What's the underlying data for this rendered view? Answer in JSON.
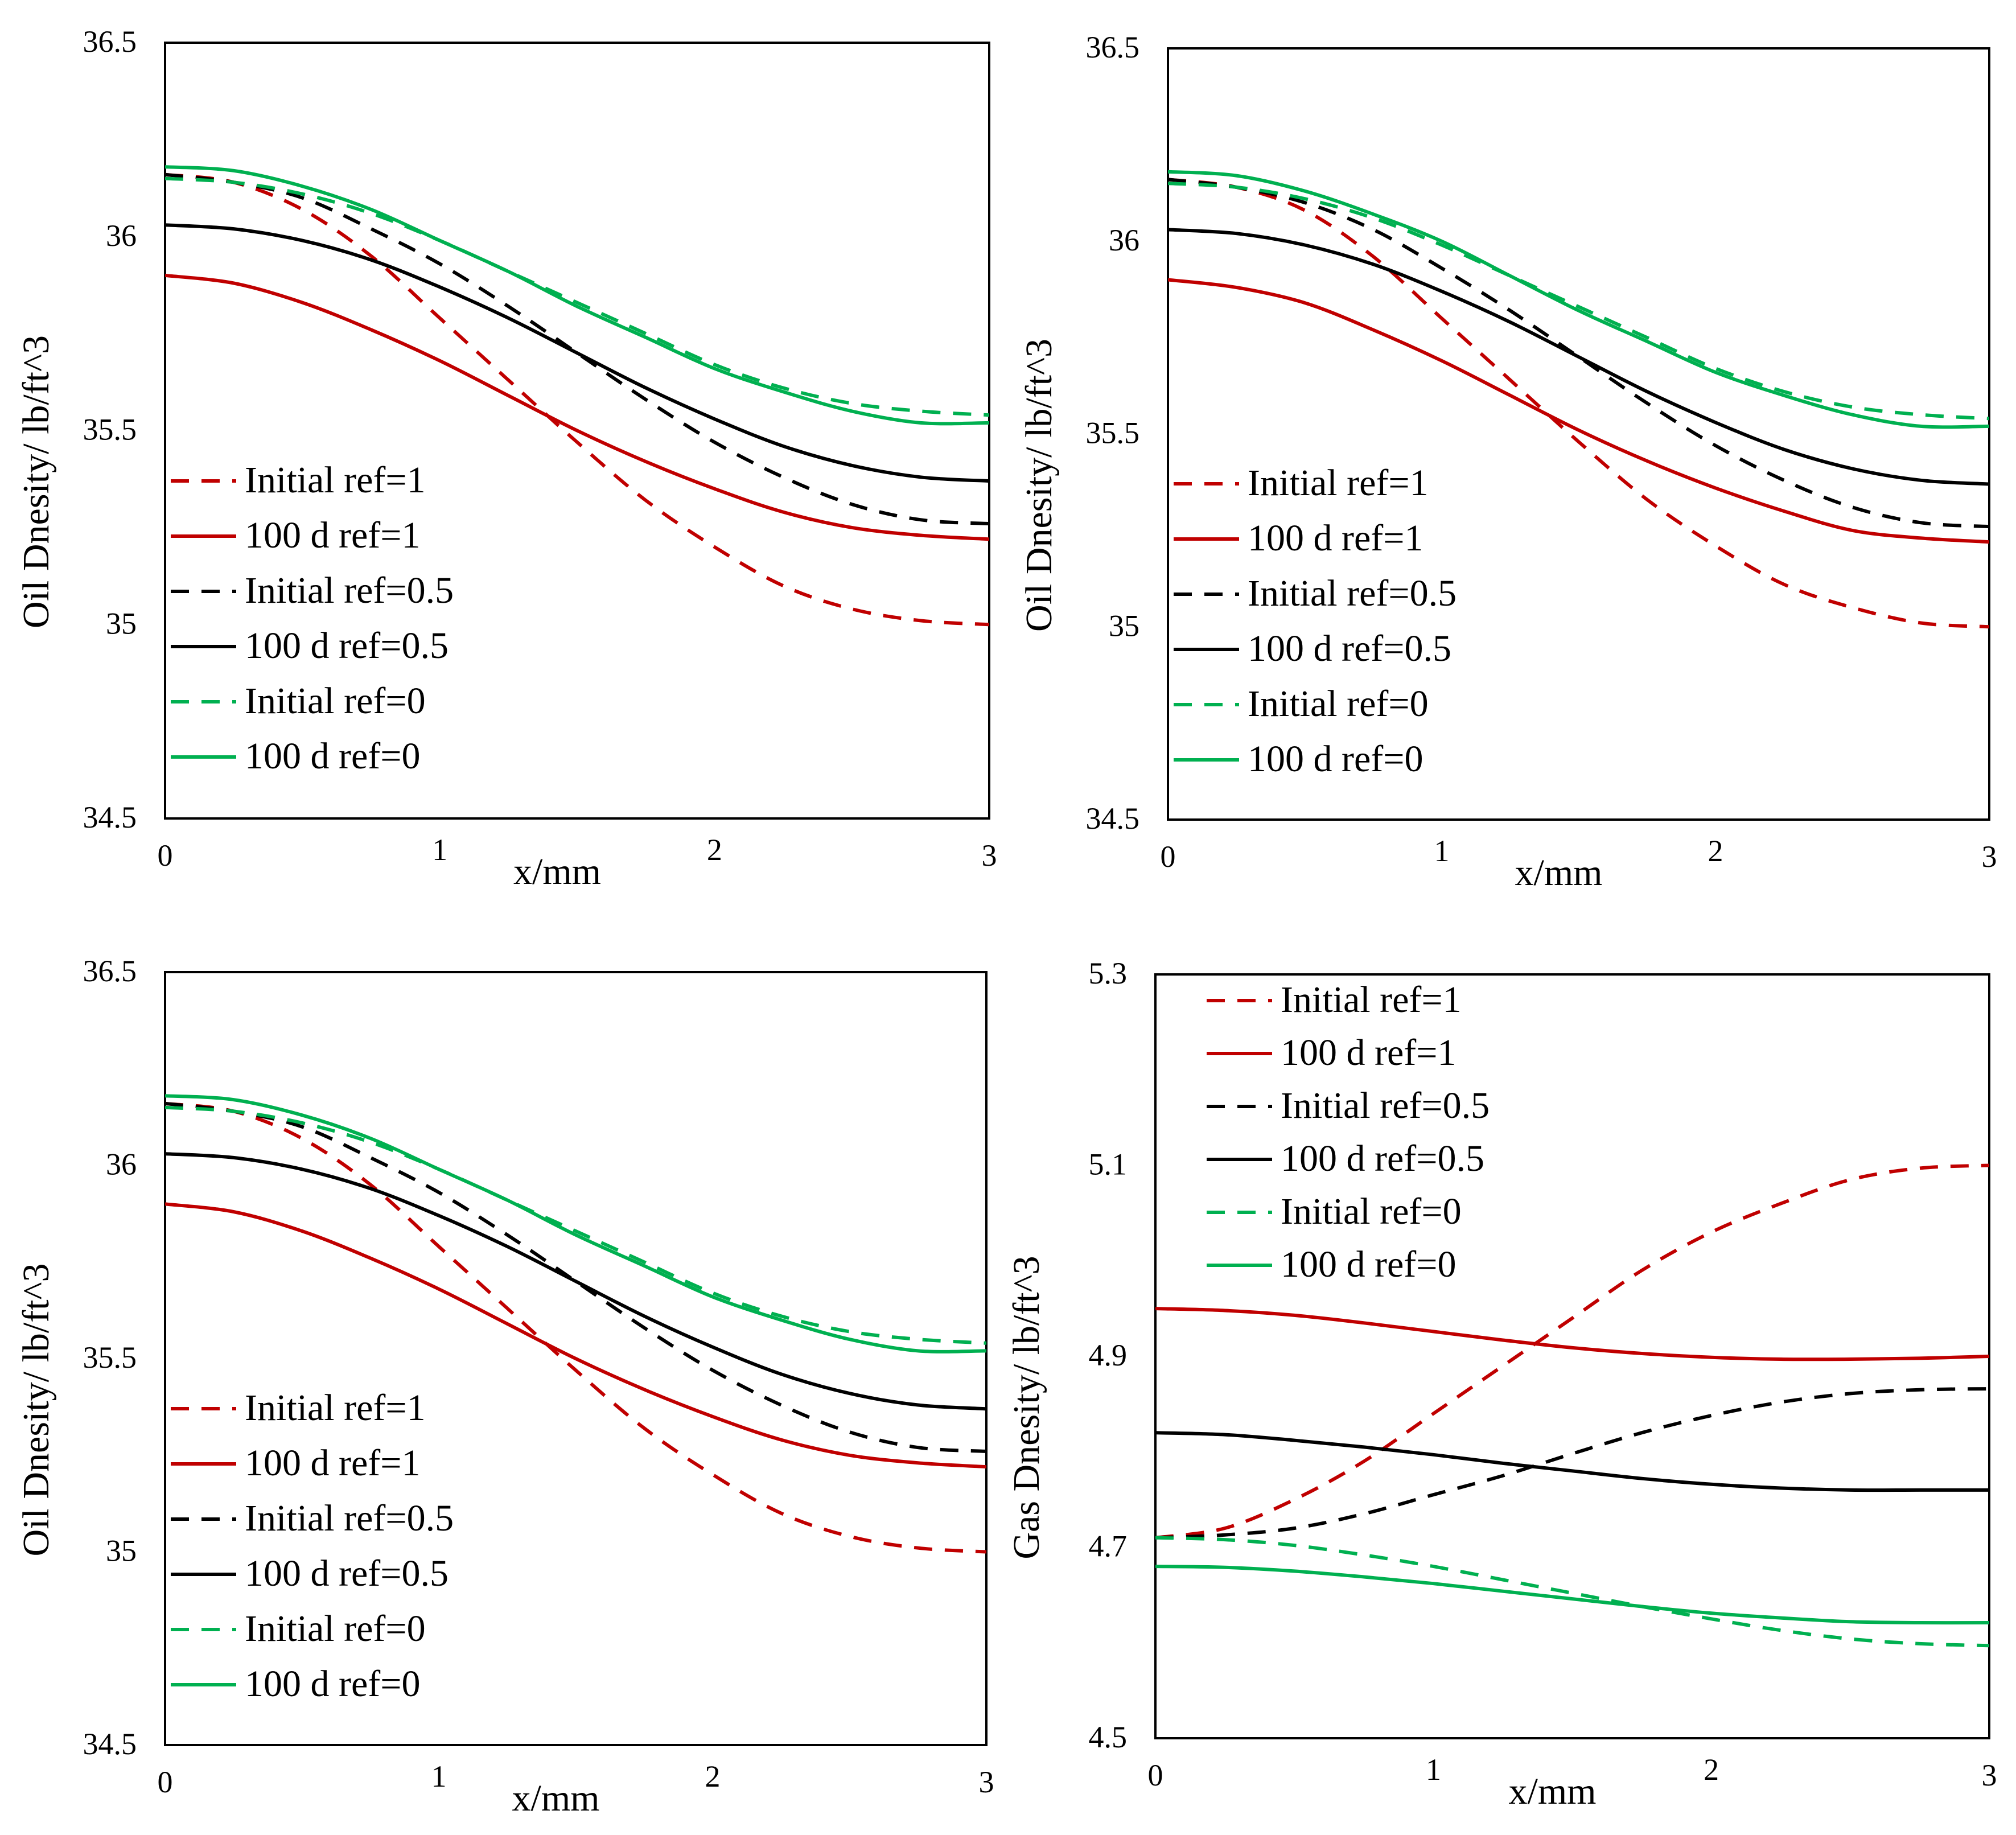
{
  "figure": {
    "description_free": true
  },
  "chart_data": [
    {
      "id": "a",
      "type": "line",
      "title": "",
      "xlabel": "x/mm",
      "ylabel": "Oil Dnesity/ lb/ft^3",
      "xlim": [
        0,
        3
      ],
      "ylim": [
        34.5,
        36.5
      ],
      "xticks": [
        0,
        1,
        2,
        3
      ],
      "xtick_labels": [
        "0",
        "1",
        "2",
        "3"
      ],
      "yticks": [
        34.5,
        35,
        35.5,
        36,
        36.5
      ],
      "ytick_labels": [
        "34.5",
        "35",
        "35.5",
        "36",
        "36.5"
      ],
      "legend_position": "bottom-left",
      "grid": false,
      "x": [
        0,
        0.25,
        0.5,
        0.75,
        1.0,
        1.25,
        1.5,
        1.75,
        2.0,
        2.25,
        2.5,
        2.75,
        3.0
      ],
      "series": [
        {
          "name": "Initial ref=1",
          "color": "#c00000",
          "style": "dashed",
          "values": [
            36.16,
            36.14,
            36.07,
            35.95,
            35.79,
            35.63,
            35.47,
            35.32,
            35.2,
            35.1,
            35.04,
            35.01,
            35.0
          ]
        },
        {
          "name": "100 d ref=1",
          "color": "#c00000",
          "style": "solid",
          "values": [
            35.9,
            35.88,
            35.83,
            35.76,
            35.68,
            35.59,
            35.5,
            35.42,
            35.35,
            35.29,
            35.25,
            35.23,
            35.22
          ]
        },
        {
          "name": "Initial ref=0.5",
          "color": "#000000",
          "style": "dashed",
          "values": [
            36.16,
            36.14,
            36.1,
            36.02,
            35.93,
            35.82,
            35.7,
            35.58,
            35.47,
            35.38,
            35.31,
            35.27,
            35.26
          ]
        },
        {
          "name": "100 d ref=0.5",
          "color": "#000000",
          "style": "solid",
          "values": [
            36.03,
            36.02,
            35.99,
            35.94,
            35.87,
            35.79,
            35.7,
            35.61,
            35.53,
            35.46,
            35.41,
            35.38,
            35.37
          ]
        },
        {
          "name": "Initial ref=0",
          "color": "#00b050",
          "style": "dashed",
          "values": [
            36.15,
            36.14,
            36.11,
            36.06,
            35.99,
            35.91,
            35.83,
            35.75,
            35.67,
            35.61,
            35.57,
            35.55,
            35.54
          ]
        },
        {
          "name": "100 d ref=0",
          "color": "#00b050",
          "style": "solid",
          "values": [
            36.18,
            36.17,
            36.13,
            36.07,
            35.99,
            35.91,
            35.82,
            35.74,
            35.66,
            35.6,
            35.55,
            35.52,
            35.52
          ]
        }
      ]
    },
    {
      "id": "b",
      "type": "line",
      "title": "",
      "xlabel": "x/mm",
      "ylabel": "Oil Dnesity/ lb/ft^3",
      "xlim": [
        0,
        3
      ],
      "ylim": [
        34.5,
        36.5
      ],
      "xticks": [
        0,
        1,
        2,
        3
      ],
      "xtick_labels": [
        "0",
        "1",
        "2",
        "3"
      ],
      "yticks": [
        34.5,
        35,
        35.5,
        36,
        36.5
      ],
      "ytick_labels": [
        "34.5",
        "35",
        "35.5",
        "36",
        "36.5"
      ],
      "legend_position": "bottom-left",
      "grid": false,
      "x": [
        0,
        0.25,
        0.5,
        0.75,
        1.0,
        1.25,
        1.5,
        1.75,
        2.0,
        2.25,
        2.5,
        2.75,
        3.0
      ],
      "series": [
        {
          "name": "Initial ref=1",
          "color": "#c00000",
          "style": "dashed",
          "values": [
            36.16,
            36.14,
            36.08,
            35.96,
            35.8,
            35.64,
            35.48,
            35.33,
            35.21,
            35.11,
            35.05,
            35.01,
            35.0
          ]
        },
        {
          "name": "100 d ref=1",
          "color": "#c00000",
          "style": "solid",
          "values": [
            35.9,
            35.88,
            35.84,
            35.77,
            35.69,
            35.6,
            35.51,
            35.43,
            35.36,
            35.3,
            35.25,
            35.23,
            35.22
          ]
        },
        {
          "name": "Initial ref=0.5",
          "color": "#000000",
          "style": "dashed",
          "values": [
            36.16,
            36.14,
            36.1,
            36.03,
            35.93,
            35.82,
            35.7,
            35.58,
            35.47,
            35.38,
            35.31,
            35.27,
            35.26
          ]
        },
        {
          "name": "100 d ref=0.5",
          "color": "#000000",
          "style": "solid",
          "values": [
            36.03,
            36.02,
            35.99,
            35.94,
            35.87,
            35.79,
            35.7,
            35.61,
            35.53,
            35.46,
            35.41,
            35.38,
            35.37
          ]
        },
        {
          "name": "Initial ref=0",
          "color": "#00b050",
          "style": "dashed",
          "values": [
            36.15,
            36.14,
            36.11,
            36.06,
            35.99,
            35.91,
            35.83,
            35.75,
            35.67,
            35.61,
            35.57,
            35.55,
            35.54
          ]
        },
        {
          "name": "100 d ref=0",
          "color": "#00b050",
          "style": "solid",
          "values": [
            36.18,
            36.17,
            36.13,
            36.07,
            36.0,
            35.91,
            35.82,
            35.74,
            35.66,
            35.6,
            35.55,
            35.52,
            35.52
          ]
        }
      ]
    },
    {
      "id": "c",
      "type": "line",
      "title": "",
      "xlabel": "x/mm",
      "ylabel": "Oil Dnesity/ lb/ft^3",
      "xlim": [
        0,
        3
      ],
      "ylim": [
        34.5,
        36.5
      ],
      "xticks": [
        0,
        1,
        2,
        3
      ],
      "xtick_labels": [
        "0",
        "1",
        "2",
        "3"
      ],
      "yticks": [
        34.5,
        35,
        35.5,
        36,
        36.5
      ],
      "ytick_labels": [
        "34.5",
        "35",
        "35.5",
        "36",
        "36.5"
      ],
      "legend_position": "bottom-left",
      "grid": false,
      "x": [
        0,
        0.25,
        0.5,
        0.75,
        1.0,
        1.25,
        1.5,
        1.75,
        2.0,
        2.25,
        2.5,
        2.75,
        3.0
      ],
      "series": [
        {
          "name": "Initial ref=1",
          "color": "#c00000",
          "style": "dashed",
          "values": [
            36.16,
            36.14,
            36.07,
            35.95,
            35.79,
            35.63,
            35.47,
            35.32,
            35.2,
            35.1,
            35.04,
            35.01,
            35.0
          ]
        },
        {
          "name": "100 d ref=1",
          "color": "#c00000",
          "style": "solid",
          "values": [
            35.9,
            35.88,
            35.83,
            35.76,
            35.68,
            35.59,
            35.5,
            35.42,
            35.35,
            35.29,
            35.25,
            35.23,
            35.22
          ]
        },
        {
          "name": "Initial ref=0.5",
          "color": "#000000",
          "style": "dashed",
          "values": [
            36.16,
            36.14,
            36.1,
            36.02,
            35.93,
            35.82,
            35.7,
            35.58,
            35.47,
            35.38,
            35.31,
            35.27,
            35.26
          ]
        },
        {
          "name": "100 d ref=0.5",
          "color": "#000000",
          "style": "solid",
          "values": [
            36.03,
            36.02,
            35.99,
            35.94,
            35.87,
            35.79,
            35.7,
            35.61,
            35.53,
            35.46,
            35.41,
            35.38,
            35.37
          ]
        },
        {
          "name": "Initial ref=0",
          "color": "#00b050",
          "style": "dashed",
          "values": [
            36.15,
            36.14,
            36.11,
            36.06,
            35.99,
            35.91,
            35.83,
            35.75,
            35.67,
            35.61,
            35.57,
            35.55,
            35.54
          ]
        },
        {
          "name": "100 d ref=0",
          "color": "#00b050",
          "style": "solid",
          "values": [
            36.18,
            36.17,
            36.13,
            36.07,
            35.99,
            35.91,
            35.82,
            35.74,
            35.66,
            35.6,
            35.55,
            35.52,
            35.52
          ]
        }
      ]
    },
    {
      "id": "d",
      "type": "line",
      "title": "",
      "xlabel": "x/mm",
      "ylabel": "Gas Dnesity/ lb/ft^3",
      "xlim": [
        0,
        3
      ],
      "ylim": [
        4.5,
        5.3
      ],
      "xticks": [
        0,
        1,
        2,
        3
      ],
      "xtick_labels": [
        "0",
        "1",
        "2",
        "3"
      ],
      "yticks": [
        4.5,
        4.7,
        4.9,
        5.1,
        5.3
      ],
      "ytick_labels": [
        "4.5",
        "4.7",
        "4.9",
        "5.1",
        "5.3"
      ],
      "legend_position": "top-left",
      "grid": false,
      "x": [
        0,
        0.25,
        0.5,
        0.75,
        1.0,
        1.25,
        1.5,
        1.75,
        2.0,
        2.25,
        2.5,
        2.75,
        3.0
      ],
      "series": [
        {
          "name": "Initial ref=1",
          "color": "#c00000",
          "style": "dashed",
          "values": [
            4.71,
            4.72,
            4.75,
            4.79,
            4.84,
            4.89,
            4.94,
            4.99,
            5.03,
            5.06,
            5.085,
            5.097,
            5.1
          ]
        },
        {
          "name": "100 d ref=1",
          "color": "#c00000",
          "style": "solid",
          "values": [
            4.95,
            4.948,
            4.943,
            4.935,
            4.926,
            4.917,
            4.909,
            4.903,
            4.899,
            4.897,
            4.897,
            4.898,
            4.9
          ]
        },
        {
          "name": "Initial ref=0.5",
          "color": "#000000",
          "style": "dashed",
          "values": [
            4.71,
            4.713,
            4.72,
            4.735,
            4.755,
            4.775,
            4.798,
            4.82,
            4.838,
            4.852,
            4.861,
            4.865,
            4.866
          ]
        },
        {
          "name": "100 d ref=0.5",
          "color": "#000000",
          "style": "solid",
          "values": [
            4.82,
            4.818,
            4.812,
            4.805,
            4.797,
            4.788,
            4.78,
            4.772,
            4.766,
            4.762,
            4.76,
            4.76,
            4.76
          ]
        },
        {
          "name": "Initial ref=0",
          "color": "#00b050",
          "style": "dashed",
          "values": [
            4.71,
            4.708,
            4.702,
            4.692,
            4.68,
            4.666,
            4.652,
            4.638,
            4.625,
            4.613,
            4.604,
            4.599,
            4.597
          ]
        },
        {
          "name": "100 d ref=0",
          "color": "#00b050",
          "style": "solid",
          "values": [
            4.68,
            4.679,
            4.675,
            4.669,
            4.662,
            4.654,
            4.646,
            4.638,
            4.631,
            4.626,
            4.622,
            4.621,
            4.621
          ]
        }
      ]
    }
  ]
}
